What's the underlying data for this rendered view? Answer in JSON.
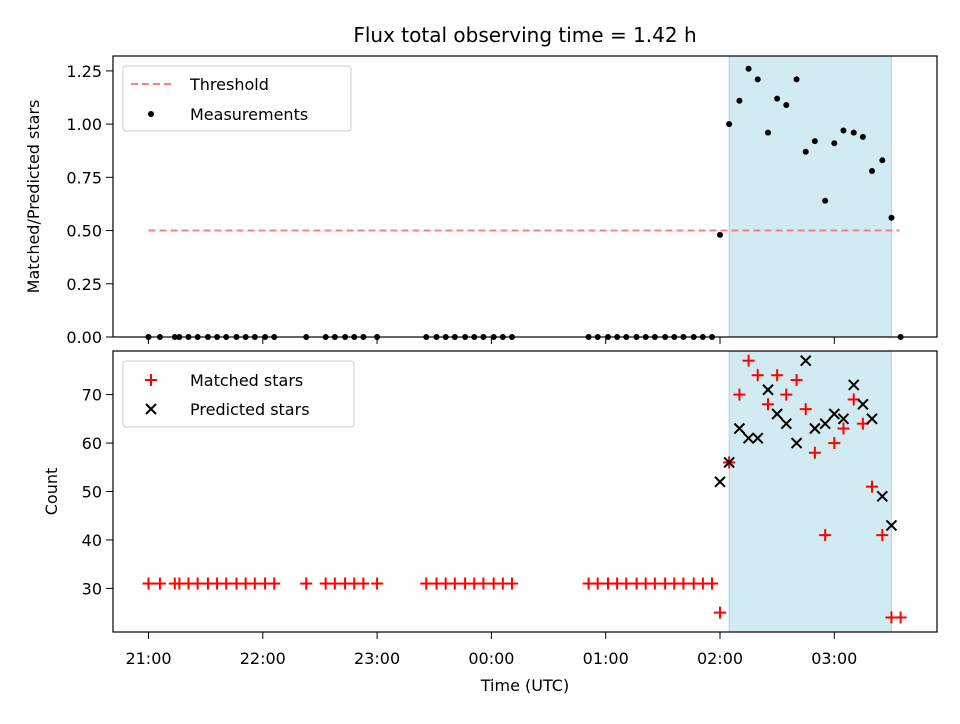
{
  "chart_data": {
    "title": "Flux total observing time = 1.42 h",
    "xlabel": "Time (UTC)",
    "x_ticks": [
      "21:00",
      "22:00",
      "23:00",
      "00:00",
      "01:00",
      "02:00",
      "03:00"
    ],
    "shaded_region": {
      "start_hours": 5.08,
      "end_hours": 6.5,
      "color": "#add8e6"
    },
    "panels": [
      {
        "type": "scatter",
        "ylabel": "Matched/Predicted stars",
        "ylim": [
          0,
          1.32
        ],
        "y_ticks": [
          "0.00",
          "0.25",
          "0.50",
          "0.75",
          "1.00",
          "1.25"
        ],
        "legend_position": "upper-left",
        "threshold": {
          "name": "Threshold",
          "value": 0.5,
          "x_range": [
            0,
            6.57
          ],
          "color": "#ff7f7f"
        },
        "series": [
          {
            "name": "Measurements",
            "color": "#000000",
            "marker": "dot",
            "x": [
              0,
              0.1,
              0.23,
              0.27,
              0.35,
              0.43,
              0.52,
              0.6,
              0.68,
              0.77,
              0.85,
              0.93,
              1.02,
              1.1,
              1.38,
              1.55,
              1.63,
              1.72,
              1.8,
              1.88,
              2.0,
              2.43,
              2.52,
              2.6,
              2.68,
              2.77,
              2.85,
              2.93,
              3.02,
              3.1,
              3.18,
              3.85,
              3.93,
              4.02,
              4.1,
              4.18,
              4.27,
              4.35,
              4.43,
              4.52,
              4.6,
              4.68,
              4.77,
              4.85,
              4.93,
              5.0,
              5.08,
              5.17,
              5.25,
              5.33,
              5.42,
              5.5,
              5.58,
              5.67,
              5.75,
              5.83,
              5.92,
              6.0,
              6.08,
              6.17,
              6.25,
              6.33,
              6.42,
              6.5,
              6.58
            ],
            "y": [
              0,
              0,
              0,
              0,
              0,
              0,
              0,
              0,
              0,
              0,
              0,
              0,
              0,
              0,
              0,
              0,
              0,
              0,
              0,
              0,
              0,
              0,
              0,
              0,
              0,
              0,
              0,
              0,
              0,
              0,
              0,
              0,
              0,
              0,
              0,
              0,
              0,
              0,
              0,
              0,
              0,
              0,
              0,
              0,
              0,
              0.48,
              1.0,
              1.11,
              1.26,
              1.21,
              0.96,
              1.12,
              1.09,
              1.21,
              0.87,
              0.92,
              0.64,
              0.91,
              0.97,
              0.96,
              0.94,
              0.78,
              0.83,
              0.56,
              0
            ]
          }
        ]
      },
      {
        "type": "scatter",
        "ylabel": "Count",
        "ylim": [
          21,
          79
        ],
        "y_ticks": [
          "30",
          "40",
          "50",
          "60",
          "70"
        ],
        "legend_position": "upper-left",
        "series": [
          {
            "name": "Matched stars",
            "color": "#ff0000",
            "marker": "plus",
            "x": [
              0,
              0.1,
              0.23,
              0.27,
              0.35,
              0.43,
              0.52,
              0.6,
              0.68,
              0.77,
              0.85,
              0.93,
              1.02,
              1.1,
              1.38,
              1.55,
              1.63,
              1.72,
              1.8,
              1.88,
              2.0,
              2.43,
              2.52,
              2.6,
              2.68,
              2.77,
              2.85,
              2.93,
              3.02,
              3.1,
              3.18,
              3.85,
              3.93,
              4.02,
              4.1,
              4.18,
              4.27,
              4.35,
              4.43,
              4.52,
              4.6,
              4.68,
              4.77,
              4.85,
              4.93,
              5.0,
              5.08,
              5.17,
              5.25,
              5.33,
              5.42,
              5.5,
              5.58,
              5.67,
              5.75,
              5.83,
              5.92,
              6.0,
              6.08,
              6.17,
              6.25,
              6.33,
              6.42,
              6.5,
              6.58
            ],
            "y": [
              31,
              31,
              31,
              31,
              31,
              31,
              31,
              31,
              31,
              31,
              31,
              31,
              31,
              31,
              31,
              31,
              31,
              31,
              31,
              31,
              31,
              31,
              31,
              31,
              31,
              31,
              31,
              31,
              31,
              31,
              31,
              31,
              31,
              31,
              31,
              31,
              31,
              31,
              31,
              31,
              31,
              31,
              31,
              31,
              31,
              25,
              56,
              70,
              77,
              74,
              68,
              74,
              70,
              73,
              67,
              58,
              41,
              60,
              63,
              69,
              64,
              51,
              41,
              24,
              24
            ]
          },
          {
            "name": "Predicted stars",
            "color": "#000000",
            "marker": "x",
            "x": [
              5.0,
              5.08,
              5.17,
              5.25,
              5.33,
              5.42,
              5.5,
              5.58,
              5.67,
              5.75,
              5.83,
              5.92,
              6.0,
              6.08,
              6.17,
              6.25,
              6.33,
              6.42,
              6.5
            ],
            "y": [
              52,
              56,
              63,
              61,
              61,
              71,
              66,
              64,
              60,
              77,
              63,
              64,
              66,
              65,
              72,
              68,
              65,
              49,
              43
            ]
          }
        ]
      }
    ]
  }
}
